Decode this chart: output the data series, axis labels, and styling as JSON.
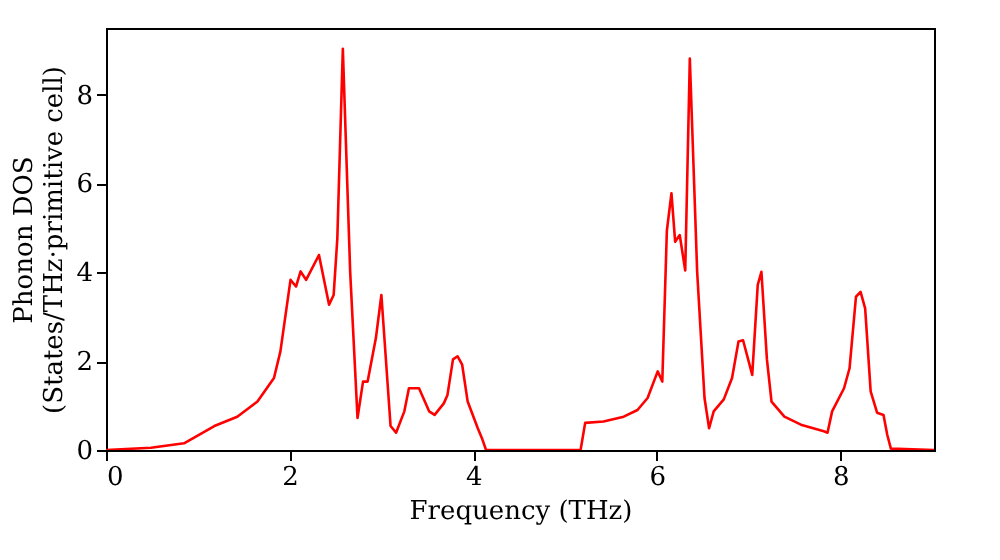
{
  "chart_data": {
    "type": "line",
    "xlabel": "Frequency (THz)",
    "ylabel": "Phonon DOS\n(States/THz·primitive cell)",
    "xlim": [
      0,
      9.02
    ],
    "ylim": [
      0,
      9.5
    ],
    "xticks": [
      0,
      2,
      4,
      6,
      8
    ],
    "yticks": [
      0,
      2,
      4,
      6,
      8
    ],
    "grid": false,
    "line_style": "solid",
    "x": [
      0,
      0.49,
      0.85,
      1.18,
      1.43,
      1.65,
      1.83,
      1.9,
      2.01,
      2.07,
      2.12,
      2.18,
      2.32,
      2.43,
      2.48,
      2.52,
      2.58,
      2.66,
      2.74,
      2.8,
      2.85,
      2.94,
      3.0,
      3.1,
      3.16,
      3.25,
      3.3,
      3.41,
      3.52,
      3.58,
      3.68,
      3.72,
      3.78,
      3.83,
      3.88,
      3.94,
      4.05,
      4.1,
      4.14,
      5.17,
      5.22,
      5.42,
      5.64,
      5.79,
      5.9,
      6.01,
      6.06,
      6.11,
      6.16,
      6.2,
      6.25,
      6.31,
      6.36,
      6.44,
      6.52,
      6.57,
      6.62,
      6.73,
      6.82,
      6.89,
      6.94,
      7.04,
      7.1,
      7.14,
      7.2,
      7.25,
      7.39,
      7.57,
      7.82,
      7.86,
      7.91,
      8.04,
      8.1,
      8.17,
      8.22,
      8.27,
      8.33,
      8.4,
      8.47,
      8.51,
      8.55,
      9.02
    ],
    "series": [
      {
        "color": "#ff0000",
        "values": [
          0,
          0.05,
          0.15,
          0.54,
          0.75,
          1.09,
          1.62,
          2.22,
          3.83,
          3.68,
          4.02,
          3.83,
          4.39,
          3.27,
          3.49,
          4.76,
          9.03,
          4.01,
          0.72,
          1.54,
          1.54,
          2.52,
          3.49,
          0.54,
          0.39,
          0.87,
          1.39,
          1.39,
          0.87,
          0.79,
          1.05,
          1.24,
          2.04,
          2.11,
          1.92,
          1.09,
          0.49,
          0.24,
          0,
          0,
          0.61,
          0.64,
          0.75,
          0.9,
          1.17,
          1.77,
          1.54,
          4.94,
          5.78,
          4.69,
          4.84,
          4.04,
          8.81,
          4.01,
          1.17,
          0.49,
          0.87,
          1.14,
          1.62,
          2.44,
          2.47,
          1.69,
          3.72,
          4.01,
          2.04,
          1.09,
          0.75,
          0.57,
          0.42,
          0.39,
          0.87,
          1.39,
          1.84,
          3.45,
          3.56,
          3.19,
          1.32,
          0.84,
          0.79,
          0.35,
          0.03,
          0
        ]
      }
    ]
  }
}
